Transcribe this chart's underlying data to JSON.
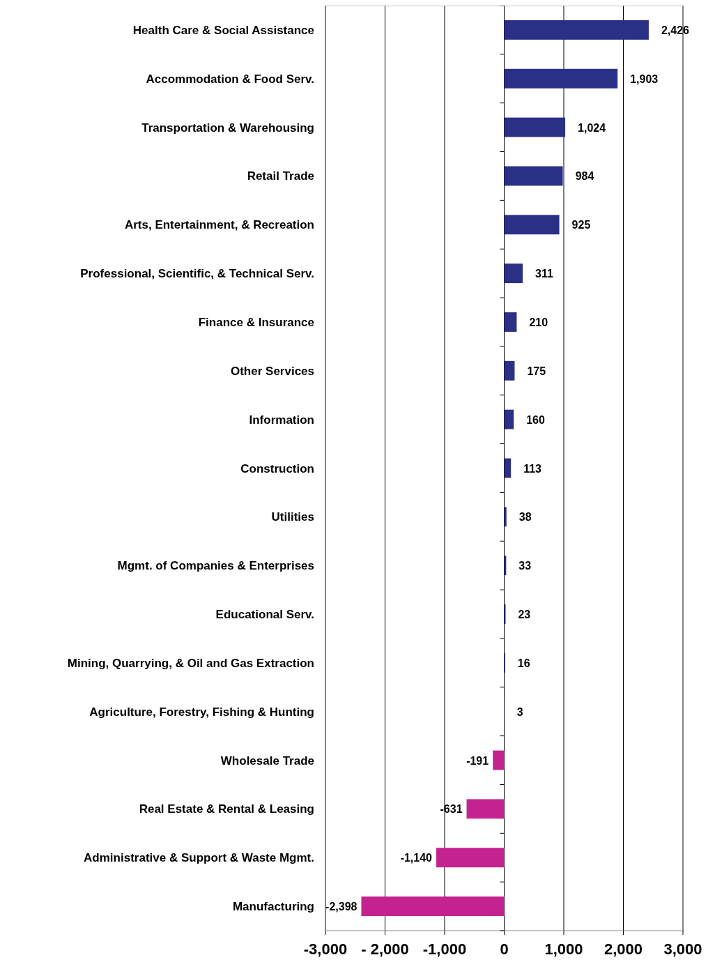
{
  "chart_data": {
    "type": "bar",
    "orientation": "horizontal",
    "categories": [
      "Health Care & Social Assistance",
      "Accommodation & Food Serv.",
      "Transportation & Warehousing",
      "Retail Trade",
      "Arts, Entertainment, & Recreation",
      "Professional, Scientific, & Technical Serv.",
      "Finance & Insurance",
      "Other Services",
      "Information",
      "Construction",
      "Utilities",
      "Mgmt. of Companies & Enterprises",
      "Educational Serv.",
      "Mining, Quarrying, & Oil and Gas Extraction",
      "Agriculture, Forestry, Fishing & Hunting",
      "Wholesale Trade",
      "Real Estate & Rental & Leasing",
      "Administrative & Support & Waste Mgmt.",
      "Manufacturing"
    ],
    "values": [
      2426,
      1903,
      1024,
      984,
      925,
      311,
      210,
      175,
      160,
      113,
      38,
      33,
      23,
      16,
      3,
      -191,
      -631,
      -1140,
      -2398
    ],
    "colors": [
      "#2b3087",
      "#2b3087",
      "#2b3087",
      "#2b3087",
      "#2b3087",
      "#2b3087",
      "#2b3087",
      "#2b3087",
      "#2b3087",
      "#2b3087",
      "#2b3087",
      "#2b3087",
      "#2b3087",
      "#2b3087",
      "#2b3087",
      "#c4238f",
      "#c4238f",
      "#c4238f",
      "#c4238f"
    ],
    "value_labels": [
      "2,426",
      "1,903",
      "1,024",
      "984",
      "925",
      "311",
      "210",
      "175",
      "160",
      "113",
      "38",
      "33",
      "23",
      "16",
      "3",
      "-191",
      "-631",
      "-1,140",
      "-2,398"
    ],
    "xlim": [
      -3000,
      3000
    ],
    "xticks": [
      {
        "value": -3000,
        "label": "-3,000"
      },
      {
        "value": -2000,
        "label": "- 2,000"
      },
      {
        "value": -1000,
        "label": "-1,000"
      },
      0,
      {
        "value": 1000,
        "label": "1,000"
      },
      {
        "value": 2000,
        "label": "2,000"
      },
      {
        "value": 3000,
        "label": "3,000"
      }
    ],
    "grid": "x"
  }
}
